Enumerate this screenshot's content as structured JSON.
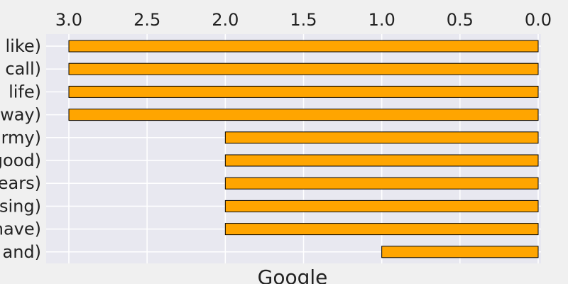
{
  "chart_data": {
    "type": "bar",
    "orientation": "horizontal",
    "x_axis_inverted": true,
    "xlabel": "Google",
    "ylabel": "",
    "xlim": [
      0,
      3.15
    ],
    "xticks": [
      "3.0",
      "2.5",
      "2.0",
      "1.5",
      "1.0",
      "0.5",
      "0.0"
    ],
    "xtick_values": [
      3.0,
      2.5,
      2.0,
      1.5,
      1.0,
      0.5,
      0.0
    ],
    "categories": [
      "like)",
      "call)",
      "life)",
      "way)",
      "army)",
      "good)",
      "years)",
      "using)",
      "have)",
      "and)"
    ],
    "values": [
      3,
      3,
      3,
      3,
      2,
      2,
      2,
      2,
      2,
      1
    ],
    "grid": true,
    "legend": "none",
    "colors": {
      "bar_fill": "#ffa500",
      "bar_edge": "#000000",
      "plot_background": "#e8e8f0",
      "figure_background": "#f0f0f0",
      "grid": "#ffffff",
      "text": "#222222"
    }
  }
}
